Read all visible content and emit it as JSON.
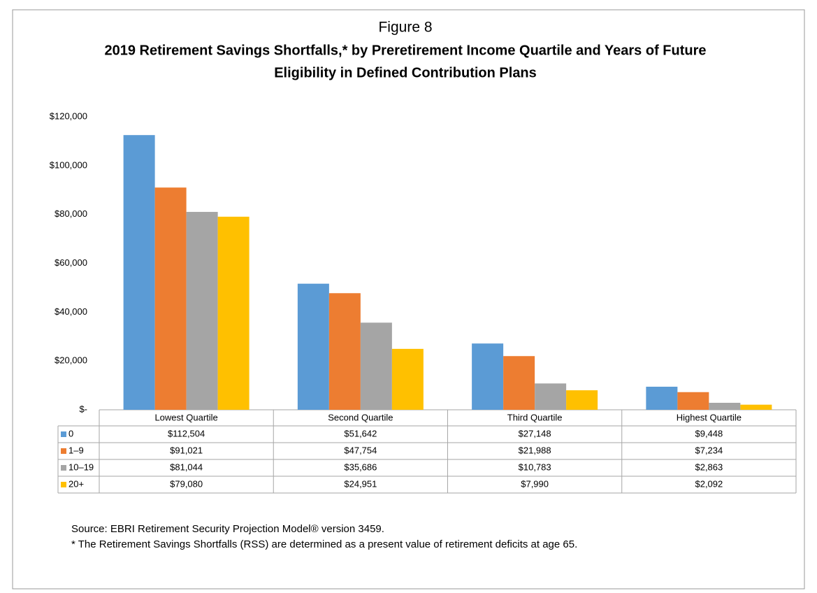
{
  "chart_data": {
    "type": "bar",
    "figure_label": "Figure 8",
    "title": [
      "2019 Retirement Savings Shortfalls,* by Preretirement Income Quartile and Years of Future",
      "Eligibility in Defined Contribution Plans"
    ],
    "categories": [
      "Lowest Quartile",
      "Second Quartile",
      "Third Quartile",
      "Highest Quartile"
    ],
    "series": [
      {
        "name": "0",
        "color": "#5b9bd5",
        "values": [
          112504,
          51642,
          27148,
          9448
        ],
        "value_labels": [
          "$112,504",
          "$51,642",
          "$27,148",
          "$9,448"
        ]
      },
      {
        "name": "1–9",
        "color": "#ed7d31",
        "values": [
          91021,
          47754,
          21988,
          7234
        ],
        "value_labels": [
          "$91,021",
          "$47,754",
          "$21,988",
          "$7,234"
        ]
      },
      {
        "name": "10–19",
        "color": "#a5a5a5",
        "values": [
          81044,
          35686,
          10783,
          2863
        ],
        "value_labels": [
          "$81,044",
          "$35,686",
          "$10,783",
          "$2,863"
        ]
      },
      {
        "name": "20+",
        "color": "#ffc000",
        "values": [
          79080,
          24951,
          7990,
          2092
        ],
        "value_labels": [
          "$79,080",
          "$24,951",
          "$7,990",
          "$2,092"
        ]
      }
    ],
    "ylim": [
      0,
      120000
    ],
    "yticks": [
      {
        "value": 0,
        "label": "$-"
      },
      {
        "value": 20000,
        "label": "$20,000"
      },
      {
        "value": 40000,
        "label": "$40,000"
      },
      {
        "value": 60000,
        "label": "$60,000"
      },
      {
        "value": 80000,
        "label": "$80,000"
      },
      {
        "value": 100000,
        "label": "$100,000"
      },
      {
        "value": 120000,
        "label": "$120,000"
      }
    ],
    "grid": false,
    "notes": [
      "Source: EBRI Retirement Security Projection Model® version 3459.",
      "* The Retirement Savings Shortfalls (RSS) are determined as a present value of retirement deficits at age 65."
    ]
  }
}
